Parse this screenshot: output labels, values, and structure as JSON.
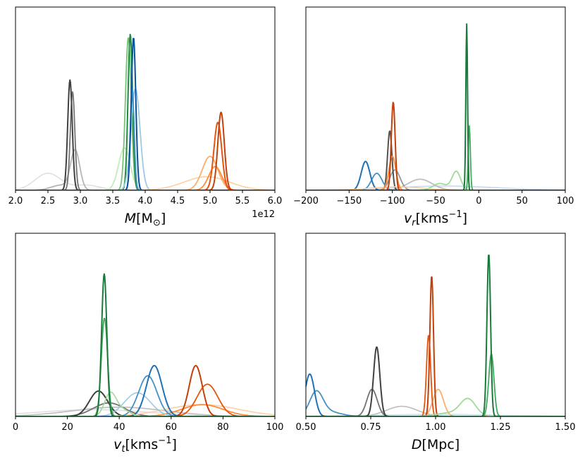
{
  "chart_data": [
    {
      "type": "line",
      "xlabel": "M[M_⊙]",
      "xlabel_parts": {
        "var": "M",
        "open": "[M",
        "sub": "⊙",
        "close": "]"
      },
      "offset_text": "1e12",
      "xlim": [
        2.0,
        6.0
      ],
      "ylim": [
        0,
        1.08
      ],
      "xticks": [
        2.0,
        2.5,
        3.0,
        3.5,
        4.0,
        4.5,
        5.0,
        5.5,
        6.0
      ],
      "xtick_labels": [
        "2.0",
        "2.5",
        "3.0",
        "3.5",
        "4.0",
        "4.5",
        "5.0",
        "5.5",
        "6.0"
      ],
      "yticks": "none",
      "series": [
        {
          "name": "grey-1",
          "color": "#e0e0e0",
          "width": 1.6,
          "components": [
            {
              "mu": 2.5,
              "sigma": 0.2,
              "amp": 0.1
            },
            {
              "mu": 3.1,
              "sigma": 0.2,
              "amp": 0.03
            }
          ]
        },
        {
          "name": "grey-2",
          "color": "#b5b5b5",
          "width": 1.8,
          "components": [
            {
              "mu": 2.92,
              "sigma": 0.07,
              "amp": 0.23
            },
            {
              "mu": 2.7,
              "sigma": 0.15,
              "amp": 0.03
            }
          ]
        },
        {
          "name": "grey-3",
          "color": "#737373",
          "width": 1.8,
          "components": [
            {
              "mu": 2.88,
              "sigma": 0.035,
              "amp": 0.58
            }
          ]
        },
        {
          "name": "grey-4",
          "color": "#404040",
          "width": 2.0,
          "components": [
            {
              "mu": 2.84,
              "sigma": 0.035,
              "amp": 0.65
            }
          ]
        },
        {
          "name": "green-1",
          "color": "#c7e9c0",
          "width": 1.8,
          "components": [
            {
              "mu": 3.68,
              "sigma": 0.09,
              "amp": 0.25
            }
          ]
        },
        {
          "name": "green-2",
          "color": "#74c476",
          "width": 1.8,
          "components": [
            {
              "mu": 3.74,
              "sigma": 0.045,
              "amp": 0.9
            }
          ]
        },
        {
          "name": "green-3",
          "color": "#238b45",
          "width": 2.0,
          "components": [
            {
              "mu": 3.77,
              "sigma": 0.035,
              "amp": 0.92
            }
          ]
        },
        {
          "name": "blue-1",
          "color": "#9ecae1",
          "width": 1.8,
          "components": [
            {
              "mu": 3.85,
              "sigma": 0.07,
              "amp": 0.6
            }
          ]
        },
        {
          "name": "blue-2",
          "color": "#4292c6",
          "width": 1.8,
          "components": [
            {
              "mu": 3.8,
              "sigma": 0.03,
              "amp": 0.6
            }
          ]
        },
        {
          "name": "blue-3",
          "color": "#08519c",
          "width": 2.0,
          "components": [
            {
              "mu": 3.82,
              "sigma": 0.035,
              "amp": 0.9
            }
          ]
        },
        {
          "name": "orange-1",
          "color": "#fdd0a2",
          "width": 1.6,
          "components": [
            {
              "mu": 4.95,
              "sigma": 0.35,
              "amp": 0.08
            }
          ]
        },
        {
          "name": "orange-2",
          "color": "#fdae6b",
          "width": 1.8,
          "components": [
            {
              "mu": 5.0,
              "sigma": 0.12,
              "amp": 0.2
            }
          ]
        },
        {
          "name": "orange-3",
          "color": "#fd8d3c",
          "width": 1.8,
          "components": [
            {
              "mu": 5.08,
              "sigma": 0.1,
              "amp": 0.14
            }
          ]
        },
        {
          "name": "orange-4",
          "color": "#e6550d",
          "width": 2.0,
          "components": [
            {
              "mu": 5.12,
              "sigma": 0.06,
              "amp": 0.4
            }
          ]
        },
        {
          "name": "orange-5",
          "color": "#c2410c",
          "width": 2.0,
          "components": [
            {
              "mu": 5.17,
              "sigma": 0.05,
              "amp": 0.46
            }
          ]
        }
      ]
    },
    {
      "type": "line",
      "xlabel": "v_r[kms^-1]",
      "xlabel_parts": {
        "var": "v",
        "sub": "r",
        "open": "[kms",
        "sup": "−1",
        "close": "]"
      },
      "offset_text": "",
      "xlim": [
        -200,
        100
      ],
      "ylim": [
        0,
        1.08
      ],
      "xticks": [
        -200,
        -150,
        -100,
        -50,
        0,
        50,
        100
      ],
      "xtick_labels": [
        "−200",
        "−150",
        "−100",
        "−50",
        "0",
        "50",
        "100"
      ],
      "yticks": "none",
      "series": [
        {
          "name": "blue-1",
          "color": "#c6dbef",
          "width": 1.6,
          "components": [
            {
              "mu": -40,
              "sigma": 60,
              "amp": 0.025
            }
          ]
        },
        {
          "name": "grey-1",
          "color": "#bdbdbd",
          "width": 1.8,
          "components": [
            {
              "mu": -68,
              "sigma": 14,
              "amp": 0.065
            }
          ]
        },
        {
          "name": "grey-2",
          "color": "#969696",
          "width": 1.8,
          "components": [
            {
              "mu": -97,
              "sigma": 6,
              "amp": 0.12
            }
          ]
        },
        {
          "name": "grey-3",
          "color": "#525252",
          "width": 2.0,
          "components": [
            {
              "mu": -103,
              "sigma": 2.5,
              "amp": 0.35
            }
          ]
        },
        {
          "name": "blue-2",
          "color": "#4292c6",
          "width": 1.8,
          "components": [
            {
              "mu": -118,
              "sigma": 6,
              "amp": 0.1
            }
          ]
        },
        {
          "name": "blue-3",
          "color": "#2171b5",
          "width": 2.0,
          "components": [
            {
              "mu": -131,
              "sigma": 5,
              "amp": 0.17
            }
          ]
        },
        {
          "name": "orange-1",
          "color": "#fdd0a2",
          "width": 1.6,
          "components": [
            {
              "mu": -95,
              "sigma": 30,
              "amp": 0.02
            }
          ]
        },
        {
          "name": "orange-2",
          "color": "#fd8d3c",
          "width": 1.8,
          "components": [
            {
              "mu": -100,
              "sigma": 4,
              "amp": 0.2
            }
          ]
        },
        {
          "name": "orange-3",
          "color": "#c2410c",
          "width": 2.0,
          "components": [
            {
              "mu": -99,
              "sigma": 2.2,
              "amp": 0.52
            }
          ]
        },
        {
          "name": "green-1",
          "color": "#a1d99b",
          "width": 1.8,
          "components": [
            {
              "mu": -26,
              "sigma": 5,
              "amp": 0.11
            },
            {
              "mu": -45,
              "sigma": 8,
              "amp": 0.04
            }
          ]
        },
        {
          "name": "green-2",
          "color": "#41ab5d",
          "width": 1.8,
          "components": [
            {
              "mu": -11,
              "sigma": 1.2,
              "amp": 0.38
            }
          ]
        },
        {
          "name": "green-3",
          "color": "#1a7a3a",
          "width": 2.0,
          "components": [
            {
              "mu": -14,
              "sigma": 1.0,
              "amp": 0.98
            }
          ]
        }
      ]
    },
    {
      "type": "line",
      "xlabel": "v_t[kms^-1]",
      "xlabel_parts": {
        "var": "v",
        "sub": "t",
        "open": "[kms",
        "sup": "−1",
        "close": "]"
      },
      "offset_text": "",
      "xlim": [
        0,
        100
      ],
      "ylim": [
        0,
        1.08
      ],
      "xticks": [
        0,
        20,
        40,
        60,
        80,
        100
      ],
      "xtick_labels": [
        "0",
        "20",
        "40",
        "60",
        "80",
        "100"
      ],
      "yticks": "none",
      "series": [
        {
          "name": "grey-1",
          "color": "#e0e0e0",
          "width": 1.6,
          "components": [
            {
              "mu": 30,
              "sigma": 22,
              "amp": 0.04
            }
          ]
        },
        {
          "name": "grey-2",
          "color": "#bdbdbd",
          "width": 1.6,
          "components": [
            {
              "mu": 40,
              "sigma": 18,
              "amp": 0.055
            }
          ]
        },
        {
          "name": "grey-3",
          "color": "#737373",
          "width": 1.8,
          "components": [
            {
              "mu": 36,
              "sigma": 6,
              "amp": 0.08
            }
          ]
        },
        {
          "name": "grey-4",
          "color": "#404040",
          "width": 2.0,
          "components": [
            {
              "mu": 32,
              "sigma": 3.5,
              "amp": 0.15
            }
          ]
        },
        {
          "name": "orange-1",
          "color": "#fdd0a2",
          "width": 1.6,
          "components": [
            {
              "mu": 72,
              "sigma": 14,
              "amp": 0.07
            }
          ]
        },
        {
          "name": "orange-2",
          "color": "#fd8d3c",
          "width": 1.8,
          "components": [
            {
              "mu": 72,
              "sigma": 8,
              "amp": 0.07
            }
          ]
        },
        {
          "name": "orange-3",
          "color": "#e6550d",
          "width": 1.8,
          "components": [
            {
              "mu": 74,
              "sigma": 4,
              "amp": 0.19
            }
          ]
        },
        {
          "name": "orange-4",
          "color": "#c2410c",
          "width": 2.0,
          "components": [
            {
              "mu": 69.5,
              "sigma": 2.5,
              "amp": 0.3
            }
          ]
        },
        {
          "name": "blue-1",
          "color": "#9ecae1",
          "width": 1.6,
          "components": [
            {
              "mu": 47,
              "sigma": 5,
              "amp": 0.14
            }
          ]
        },
        {
          "name": "blue-2",
          "color": "#4292c6",
          "width": 1.8,
          "components": [
            {
              "mu": 51,
              "sigma": 3.5,
              "amp": 0.24
            }
          ]
        },
        {
          "name": "blue-3",
          "color": "#2171b5",
          "width": 2.0,
          "components": [
            {
              "mu": 53.5,
              "sigma": 3,
              "amp": 0.3
            }
          ]
        },
        {
          "name": "green-1",
          "color": "#a1d99b",
          "width": 1.6,
          "components": [
            {
              "mu": 36.5,
              "sigma": 2.2,
              "amp": 0.13
            },
            {
              "mu": 41,
              "sigma": 3,
              "amp": 0.04
            }
          ]
        },
        {
          "name": "green-2",
          "color": "#41ab5d",
          "width": 1.8,
          "components": [
            {
              "mu": 34.3,
              "sigma": 1.2,
              "amp": 0.58
            }
          ]
        },
        {
          "name": "green-3",
          "color": "#1a7a3a",
          "width": 2.0,
          "components": [
            {
              "mu": 34.2,
              "sigma": 1.0,
              "amp": 0.84
            }
          ]
        }
      ]
    },
    {
      "type": "line",
      "xlabel": "D[Mpc]",
      "xlabel_parts": {
        "var": "D",
        "open": "[Mpc",
        "close": "]"
      },
      "offset_text": "",
      "xlim": [
        0.5,
        1.5
      ],
      "ylim": [
        0,
        1.08
      ],
      "xticks": [
        0.5,
        0.75,
        1.0,
        1.25,
        1.5
      ],
      "xtick_labels": [
        "0.50",
        "0.75",
        "1.00",
        "1.25",
        "1.50"
      ],
      "yticks": "none",
      "series": [
        {
          "name": "blue-1",
          "color": "#c6dbef",
          "width": 1.6,
          "components": [
            {
              "mu": 1.0,
              "sigma": 0.25,
              "amp": 0.012
            }
          ]
        },
        {
          "name": "grey-1",
          "color": "#bdbdbd",
          "width": 1.6,
          "components": [
            {
              "mu": 0.87,
              "sigma": 0.06,
              "amp": 0.06
            }
          ]
        },
        {
          "name": "grey-2",
          "color": "#737373",
          "width": 1.8,
          "components": [
            {
              "mu": 0.755,
              "sigma": 0.02,
              "amp": 0.16
            }
          ]
        },
        {
          "name": "grey-3",
          "color": "#404040",
          "width": 2.0,
          "components": [
            {
              "mu": 0.773,
              "sigma": 0.012,
              "amp": 0.41
            }
          ]
        },
        {
          "name": "blue-2",
          "color": "#4292c6",
          "width": 1.8,
          "components": [
            {
              "mu": 0.54,
              "sigma": 0.025,
              "amp": 0.13
            },
            {
              "mu": 0.58,
              "sigma": 0.05,
              "amp": 0.03
            }
          ]
        },
        {
          "name": "blue-3",
          "color": "#2171b5",
          "width": 2.0,
          "components": [
            {
              "mu": 0.515,
              "sigma": 0.018,
              "amp": 0.25
            }
          ]
        },
        {
          "name": "orange-1",
          "color": "#fdae6b",
          "width": 1.8,
          "components": [
            {
              "mu": 1.01,
              "sigma": 0.02,
              "amp": 0.16
            }
          ]
        },
        {
          "name": "orange-2",
          "color": "#e6550d",
          "width": 1.8,
          "components": [
            {
              "mu": 0.973,
              "sigma": 0.008,
              "amp": 0.48
            }
          ]
        },
        {
          "name": "orange-3",
          "color": "#c2410c",
          "width": 2.0,
          "components": [
            {
              "mu": 0.985,
              "sigma": 0.007,
              "amp": 0.83
            }
          ]
        },
        {
          "name": "green-1",
          "color": "#a1d99b",
          "width": 1.8,
          "components": [
            {
              "mu": 1.125,
              "sigma": 0.03,
              "amp": 0.1
            },
            {
              "mu": 1.05,
              "sigma": 0.05,
              "amp": 0.02
            }
          ]
        },
        {
          "name": "green-2",
          "color": "#41ab5d",
          "width": 1.8,
          "components": [
            {
              "mu": 1.215,
              "sigma": 0.01,
              "amp": 0.37
            }
          ]
        },
        {
          "name": "green-3",
          "color": "#1a7a3a",
          "width": 2.0,
          "components": [
            {
              "mu": 1.205,
              "sigma": 0.007,
              "amp": 0.96
            }
          ]
        }
      ]
    }
  ]
}
